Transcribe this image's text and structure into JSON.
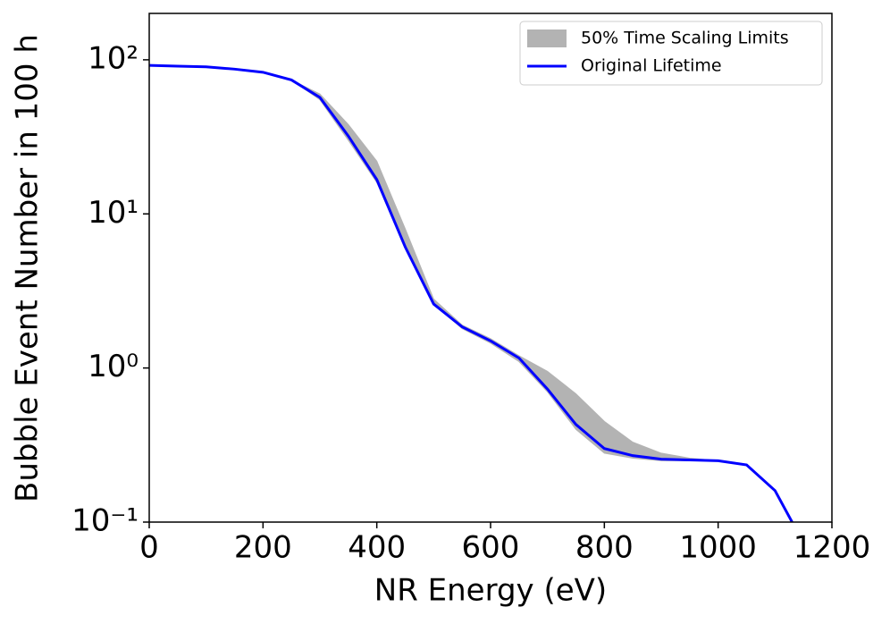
{
  "chart_data": {
    "type": "line",
    "xlabel": "NR Energy (eV)",
    "ylabel": "Bubble Event Number in 100 h",
    "x": [
      0,
      50,
      100,
      150,
      200,
      250,
      300,
      350,
      400,
      450,
      500,
      550,
      600,
      650,
      700,
      750,
      800,
      850,
      900,
      950,
      1000,
      1050,
      1100,
      1130
    ],
    "series": [
      {
        "name": "50% Time Scaling Limits",
        "kind": "band",
        "color": "#b3b3b3",
        "lower": [
          92,
          91,
          90,
          87,
          83,
          74,
          55,
          30,
          16,
          6.0,
          2.6,
          1.8,
          1.45,
          1.1,
          0.7,
          0.4,
          0.28,
          0.26,
          0.25,
          0.25,
          0.25,
          0.235,
          0.16,
          0.1
        ],
        "upper": [
          92,
          91,
          90,
          87,
          83,
          74,
          60,
          38,
          22,
          8,
          2.8,
          1.9,
          1.55,
          1.2,
          0.95,
          0.68,
          0.45,
          0.33,
          0.28,
          0.26,
          0.25,
          0.235,
          0.16,
          0.1
        ]
      },
      {
        "name": "Original Lifetime",
        "kind": "line",
        "color": "#0000ff",
        "values": [
          92,
          91,
          90,
          87,
          83,
          74,
          57,
          32,
          16.7,
          6.1,
          2.6,
          1.85,
          1.5,
          1.16,
          0.73,
          0.43,
          0.3,
          0.27,
          0.256,
          0.253,
          0.25,
          0.235,
          0.16,
          0.1
        ]
      }
    ],
    "xlim": [
      0,
      1200
    ],
    "xticks": [
      0,
      200,
      400,
      600,
      800,
      1000,
      1200
    ],
    "ylim": [
      0.1,
      200
    ],
    "ylog": true,
    "yticks": [
      {
        "value": 0.1,
        "label": "10⁻¹"
      },
      {
        "value": 1,
        "label": "10⁰"
      },
      {
        "value": 10,
        "label": "10¹"
      },
      {
        "value": 100,
        "label": "10²"
      }
    ],
    "legend": "upper right",
    "grid": false
  }
}
